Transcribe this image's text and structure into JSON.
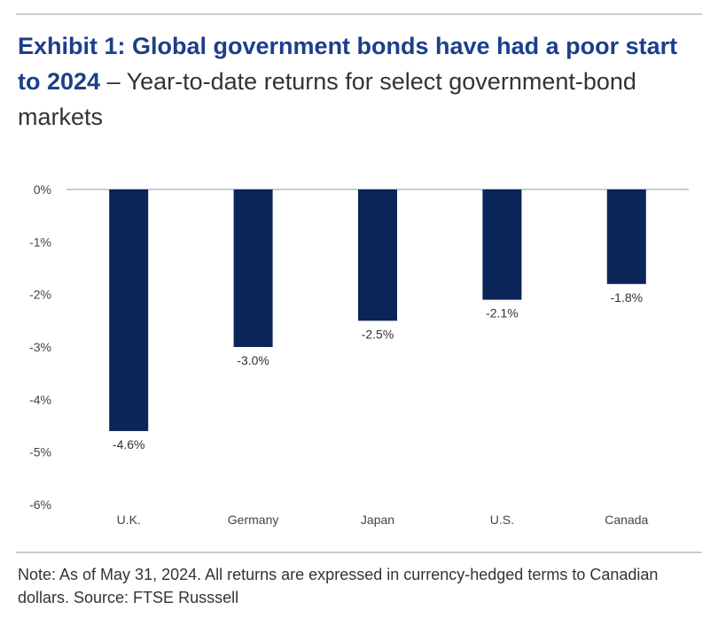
{
  "title": {
    "bold": "Exhibit 1: Global government bonds have had a poor start to 2024",
    "separator": " – ",
    "subtitle": "Year-to-date returns for select government-bond markets"
  },
  "note": "Note: As of May 31, 2024. All returns are expressed in currency-hedged terms to Canadian dollars. Source: FTSE Russsell",
  "colors": {
    "bar": "#0b2559",
    "axis": "#c9ccd2",
    "title_accent": "#1c3f8a"
  },
  "chart_data": {
    "type": "bar",
    "title": "Exhibit 1: Global government bonds have had a poor start to 2024",
    "subtitle": "Year-to-date returns for select government-bond markets",
    "xlabel": "",
    "ylabel": "",
    "categories": [
      "U.K.",
      "Germany",
      "Japan",
      "U.S.",
      "Canada"
    ],
    "values": [
      -4.6,
      -3.0,
      -2.5,
      -2.1,
      -1.8
    ],
    "data_labels": [
      "-4.6%",
      "-3.0%",
      "-2.5%",
      "-2.1%",
      "-1.8%"
    ],
    "ylim": [
      -6,
      0
    ],
    "yticks": [
      0,
      -1,
      -2,
      -3,
      -4,
      -5,
      -6
    ],
    "ytick_labels": [
      "0%",
      "-1%",
      "-2%",
      "-3%",
      "-4%",
      "-5%",
      "-6%"
    ],
    "grid": false,
    "legend": "none"
  }
}
